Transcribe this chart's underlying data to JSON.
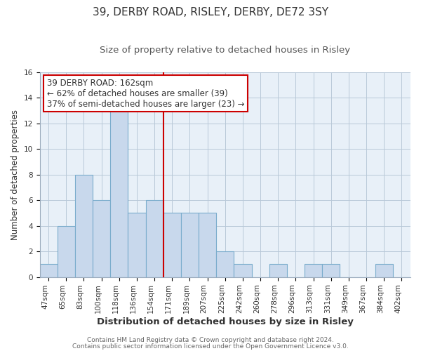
{
  "title": "39, DERBY ROAD, RISLEY, DERBY, DE72 3SY",
  "subtitle": "Size of property relative to detached houses in Risley",
  "xlabel": "Distribution of detached houses by size in Risley",
  "ylabel": "Number of detached properties",
  "bar_labels": [
    "47sqm",
    "65sqm",
    "83sqm",
    "100sqm",
    "118sqm",
    "136sqm",
    "154sqm",
    "171sqm",
    "189sqm",
    "207sqm",
    "225sqm",
    "242sqm",
    "260sqm",
    "278sqm",
    "296sqm",
    "313sqm",
    "331sqm",
    "349sqm",
    "367sqm",
    "384sqm",
    "402sqm"
  ],
  "bar_values": [
    1,
    4,
    8,
    6,
    13,
    5,
    6,
    5,
    5,
    5,
    2,
    1,
    0,
    1,
    0,
    1,
    1,
    0,
    0,
    1,
    0
  ],
  "bar_color": "#c8d8ec",
  "bar_edge_color": "#7aaccc",
  "vline_color": "#cc0000",
  "vline_index": 6.5,
  "annotation_title": "39 DERBY ROAD: 162sqm",
  "annotation_line1": "← 62% of detached houses are smaller (39)",
  "annotation_line2": "37% of semi-detached houses are larger (23) →",
  "annotation_box_color": "#ffffff",
  "annotation_box_edge": "#cc0000",
  "bg_color": "#e8f0f8",
  "ylim": [
    0,
    16
  ],
  "yticks": [
    0,
    2,
    4,
    6,
    8,
    10,
    12,
    14,
    16
  ],
  "footnote1": "Contains HM Land Registry data © Crown copyright and database right 2024.",
  "footnote2": "Contains public sector information licensed under the Open Government Licence v3.0.",
  "title_fontsize": 11,
  "subtitle_fontsize": 9.5,
  "xlabel_fontsize": 9.5,
  "ylabel_fontsize": 8.5,
  "tick_fontsize": 7.5,
  "annotation_fontsize": 8.5,
  "footnote_fontsize": 6.5
}
